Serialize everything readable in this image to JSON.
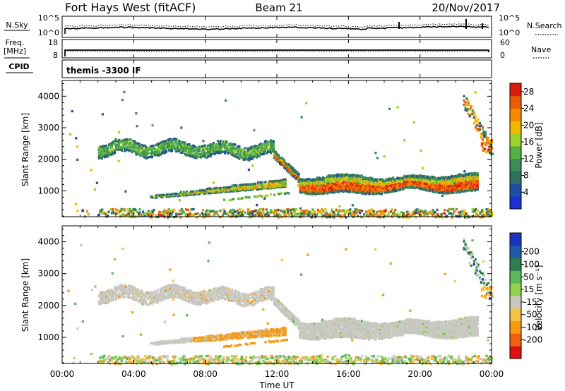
{
  "header": {
    "station": "Fort Hays West (fitACF)",
    "beam": "Beam 21",
    "date": "20/Nov/2017"
  },
  "strip_panels": {
    "nsky_label": "N.Sky",
    "nsearch_label": "N.Search",
    "noise_ticks": [
      "10^5",
      "10^0"
    ],
    "freq_label": "Freq.",
    "freq_unit": "[MHz]",
    "freq_ticks": [
      "18",
      "8"
    ],
    "nave_label": "Nave",
    "nave_ticks": [
      "60",
      "0"
    ],
    "cpid_label": "CPID",
    "cpid_text": "themis -3300 IF"
  },
  "colors": {
    "power": [
      "#1b2fd6",
      "#1e4fa3",
      "#2e6f5e",
      "#3c8c56",
      "#55b043",
      "#9fd12e",
      "#f2b800",
      "#f58a00",
      "#ec5a0a",
      "#d81e0f"
    ],
    "velocity": [
      "#dd1111",
      "#ef6010",
      "#f89a10",
      "#f5c34a",
      "#c8c8c0",
      "#8fd24b",
      "#5ab85a",
      "#2f7f4e",
      "#1e5aa8",
      "#1b35c0"
    ]
  },
  "chart_data": [
    {
      "type": "heatmap",
      "title": "Power",
      "ylabel": "Slant Range [km]",
      "xlabel": "Time UT",
      "x_ticks": [
        "00:00",
        "04:00",
        "08:00",
        "12:00",
        "16:00",
        "20:00",
        "00:00"
      ],
      "xlim_hours": [
        0,
        24
      ],
      "y_ticks": [
        1000,
        2000,
        3000,
        4000
      ],
      "ylim_km": [
        180,
        4500
      ],
      "colorbar": {
        "label": "Power [dB]",
        "ticks": [
          4,
          8,
          12,
          16,
          20,
          24,
          28
        ],
        "range": [
          0,
          30
        ]
      },
      "regions": [
        {
          "name": "upper band",
          "t_start": 2.0,
          "t_end": 11.8,
          "range_center_km": 2400,
          "range_width_km": 300,
          "power_db": [
            10,
            16
          ]
        },
        {
          "name": "evening band",
          "t_start": 13.0,
          "t_end": 23.2,
          "range_center_km": 1250,
          "range_width_km": 500,
          "power_db": [
            16,
            28
          ]
        },
        {
          "name": "lower rising band",
          "t_start": 5.0,
          "t_end": 12.5,
          "range_start_km": 850,
          "range_end_km": 1300,
          "power_db": [
            12,
            24
          ]
        },
        {
          "name": "ground scatter",
          "t_start": 2.0,
          "t_end": 24.0,
          "range_center_km": 300,
          "power_db": [
            4,
            28
          ]
        }
      ]
    },
    {
      "type": "heatmap",
      "title": "Velocity",
      "ylabel": "Slant Range [km]",
      "xlabel": "Time UT",
      "x_ticks": [
        "00:00",
        "04:00",
        "08:00",
        "12:00",
        "16:00",
        "20:00",
        "00:00"
      ],
      "xlim_hours": [
        0,
        24
      ],
      "y_ticks": [
        1000,
        2000,
        3000,
        4000
      ],
      "ylim_km": [
        180,
        4500
      ],
      "colorbar": {
        "label": "Velocity [m s⁻¹]",
        "ticks": [
          200,
          100,
          50,
          15,
          -15,
          -50,
          -100,
          -200
        ],
        "range": [
          -250,
          250
        ]
      },
      "regions": [
        {
          "name": "upper band",
          "t_start": 2.0,
          "t_end": 11.8,
          "range_center_km": 2400,
          "velocity_ms": [
            -15,
            15
          ]
        },
        {
          "name": "evening band",
          "t_start": 13.0,
          "t_end": 23.2,
          "range_center_km": 1300,
          "velocity_ms": [
            -15,
            15
          ]
        },
        {
          "name": "lower rising band",
          "t_start": 7.0,
          "t_end": 12.5,
          "range_start_km": 850,
          "range_end_km": 1250,
          "velocity_ms": [
            -100,
            -50
          ]
        },
        {
          "name": "ground scatter",
          "t_start": 2.0,
          "t_end": 24.0,
          "range_center_km": 300,
          "velocity_ms": [
            -100,
            100
          ]
        }
      ]
    }
  ]
}
